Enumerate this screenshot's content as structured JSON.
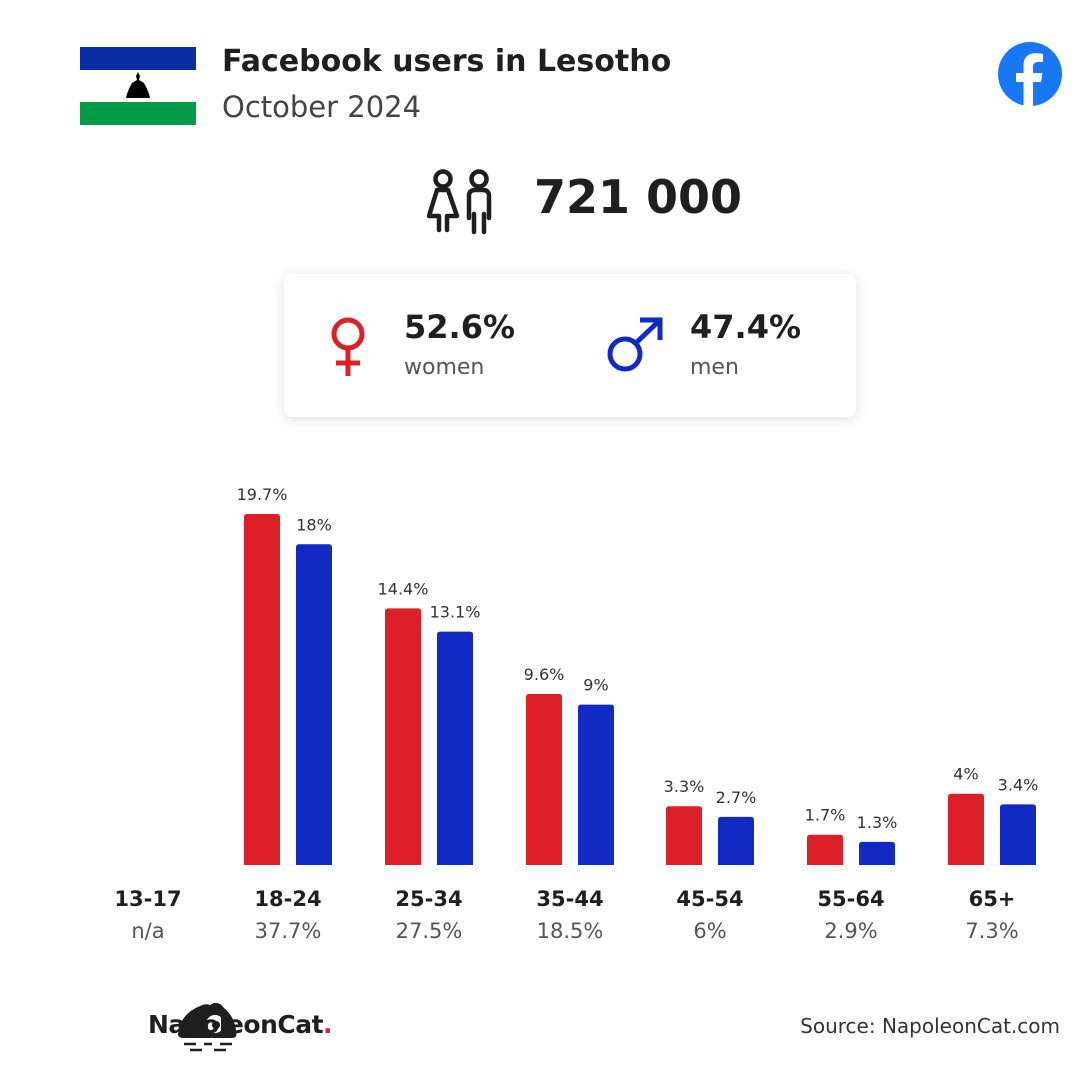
{
  "header": {
    "title": "Facebook users in Lesotho",
    "subtitle": "October 2024"
  },
  "total": {
    "value": "721 000"
  },
  "gender": {
    "women_pct": "52.6%",
    "women_label": "women",
    "men_pct": "47.4%",
    "men_label": "men"
  },
  "chart_data": {
    "type": "bar",
    "categories": [
      "13-17",
      "18-24",
      "25-34",
      "35-44",
      "45-54",
      "55-64",
      "65+"
    ],
    "category_totals": [
      "n/a",
      "37.7%",
      "27.5%",
      "18.5%",
      "6%",
      "2.9%",
      "7.3%"
    ],
    "series": [
      {
        "key": "women",
        "color": "#dd2028",
        "values": [
          null,
          19.7,
          14.4,
          9.6,
          3.3,
          1.7,
          4
        ],
        "labels": [
          "",
          "19.7%",
          "14.4%",
          "9.6%",
          "3.3%",
          "1.7%",
          "4%"
        ]
      },
      {
        "key": "men",
        "color": "#112ac4",
        "values": [
          null,
          18,
          13.1,
          9,
          2.7,
          1.3,
          3.4
        ],
        "labels": [
          "",
          "18%",
          "13.1%",
          "9%",
          "2.7%",
          "1.3%",
          "3.4%"
        ]
      }
    ],
    "ylim": [
      0,
      19.7
    ]
  },
  "footer": {
    "brand_name": "NapoleonCat",
    "brand_dot": ".",
    "source": "Source: NapoleonCat.com"
  },
  "colors": {
    "women": "#dd2028",
    "men": "#112ac4",
    "facebook": "#1877f2"
  },
  "icons": [
    "lesotho-flag",
    "facebook-icon",
    "people-icon",
    "female-icon",
    "male-icon",
    "napoleoncat-logo-icon"
  ]
}
